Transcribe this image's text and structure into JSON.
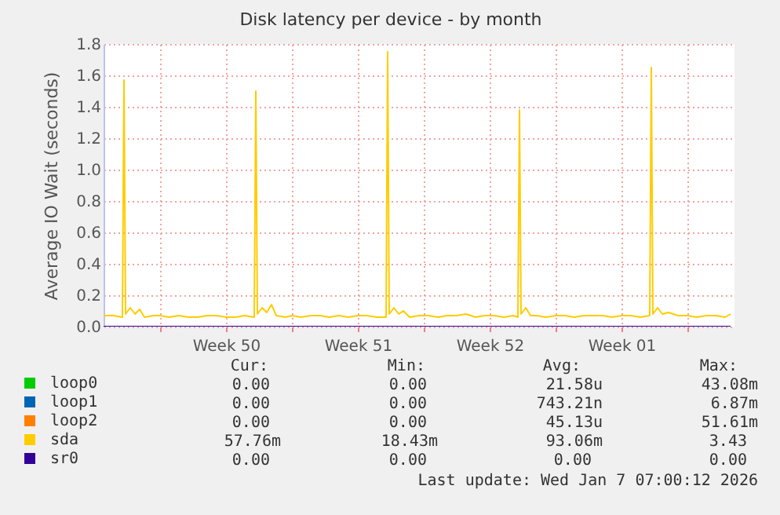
{
  "chart_data": {
    "type": "line",
    "title": "Disk latency per device - by month",
    "ylabel": "Average IO Wait (seconds)",
    "xlim": [
      "2025-12-05",
      "2026-01-07T12:00"
    ],
    "xticks": [
      {
        "value": "2025-12-08",
        "label": null
      },
      {
        "value": "2025-12-11T12:00",
        "label": "Week 50"
      },
      {
        "value": "2025-12-15",
        "label": null
      },
      {
        "value": "2025-12-18T12:00",
        "label": "Week 51"
      },
      {
        "value": "2025-12-22",
        "label": null
      },
      {
        "value": "2025-12-25T12:00",
        "label": "Week 52"
      },
      {
        "value": "2025-12-29",
        "label": null
      },
      {
        "value": "2026-01-01T12:00",
        "label": "Week 01"
      },
      {
        "value": "2026-01-05",
        "label": null
      }
    ],
    "ylim": [
      0,
      1.8
    ],
    "yticks": [
      {
        "value": 0,
        "label": "0.0"
      },
      {
        "value": 0.2,
        "label": "0.2"
      },
      {
        "value": 0.4,
        "label": "0.4"
      },
      {
        "value": 0.6,
        "label": "0.6"
      },
      {
        "value": 0.8,
        "label": "0.8"
      },
      {
        "value": 1,
        "label": "1.0"
      },
      {
        "value": 1.2,
        "label": "1.2"
      },
      {
        "value": 1.4,
        "label": "1.4"
      },
      {
        "value": 1.6,
        "label": "1.6"
      },
      {
        "value": 1.8,
        "label": "1.8"
      }
    ],
    "grid": true,
    "legend": "bottom left",
    "series": [
      {
        "name": "loop0",
        "color": "#00cc00",
        "values": [
          null
        ]
      },
      {
        "name": "loop1",
        "color": "#0066b3",
        "values": [
          null
        ]
      },
      {
        "name": "loop2",
        "color": "#ff8000",
        "values": [
          null
        ]
      },
      {
        "name": "sda",
        "color": "#ffcc00",
        "x": [
          "2025-12-05T00:00",
          "2025-12-05T12:00",
          "2025-12-06T00:00",
          "2025-12-06T02:00",
          "2025-12-06T04:00",
          "2025-12-06T10:00",
          "2025-12-06T16:00",
          "2025-12-06T22:00",
          "2025-12-07T04:00",
          "2025-12-07T16:00",
          "2025-12-08T00:00",
          "2025-12-08T12:00",
          "2025-12-09T00:00",
          "2025-12-09T12:00",
          "2025-12-10T00:00",
          "2025-12-10T12:00",
          "2025-12-11T00:00",
          "2025-12-11T12:00",
          "2025-12-12T00:00",
          "2025-12-12T12:00",
          "2025-12-13T00:00",
          "2025-12-13T02:00",
          "2025-12-13T04:00",
          "2025-12-13T10:00",
          "2025-12-13T16:00",
          "2025-12-13T22:00",
          "2025-12-14T04:00",
          "2025-12-14T16:00",
          "2025-12-15T00:00",
          "2025-12-15T12:00",
          "2025-12-16T00:00",
          "2025-12-16T12:00",
          "2025-12-17T00:00",
          "2025-12-17T12:00",
          "2025-12-18T00:00",
          "2025-12-18T12:00",
          "2025-12-19T00:00",
          "2025-12-19T12:00",
          "2025-12-20T00:00",
          "2025-12-20T02:00",
          "2025-12-20T04:00",
          "2025-12-20T10:00",
          "2025-12-20T16:00",
          "2025-12-20T22:00",
          "2025-12-21T06:00",
          "2025-12-21T18:00",
          "2025-12-22T06:00",
          "2025-12-22T18:00",
          "2025-12-23T06:00",
          "2025-12-23T18:00",
          "2025-12-24T06:00",
          "2025-12-24T18:00",
          "2025-12-25T06:00",
          "2025-12-25T18:00",
          "2025-12-26T06:00",
          "2025-12-26T18:00",
          "2025-12-27T00:00",
          "2025-12-27T02:00",
          "2025-12-27T04:00",
          "2025-12-27T10:00",
          "2025-12-27T16:00",
          "2025-12-28T00:00",
          "2025-12-28T12:00",
          "2025-12-29T00:00",
          "2025-12-29T12:00",
          "2025-12-30T00:00",
          "2025-12-30T12:00",
          "2025-12-31T00:00",
          "2025-12-31T12:00",
          "2026-01-01T00:00",
          "2026-01-01T12:00",
          "2026-01-02T00:00",
          "2026-01-02T12:00",
          "2026-01-03T00:00",
          "2026-01-03T02:00",
          "2026-01-03T04:00",
          "2026-01-03T10:00",
          "2026-01-03T16:00",
          "2026-01-04T00:00",
          "2026-01-04T12:00",
          "2026-01-05T00:00",
          "2026-01-05T12:00",
          "2026-01-06T00:00",
          "2026-01-06T12:00",
          "2026-01-07T00:00",
          "2026-01-07T07:00"
        ],
        "values": [
          0.07,
          0.07,
          0.06,
          1.57,
          0.08,
          0.12,
          0.08,
          0.11,
          0.06,
          0.07,
          0.07,
          0.06,
          0.07,
          0.06,
          0.06,
          0.07,
          0.07,
          0.06,
          0.06,
          0.07,
          0.06,
          1.5,
          0.08,
          0.12,
          0.09,
          0.14,
          0.07,
          0.06,
          0.07,
          0.06,
          0.07,
          0.07,
          0.06,
          0.07,
          0.06,
          0.07,
          0.07,
          0.06,
          0.06,
          1.75,
          0.08,
          0.12,
          0.08,
          0.1,
          0.06,
          0.07,
          0.07,
          0.06,
          0.07,
          0.07,
          0.08,
          0.06,
          0.07,
          0.07,
          0.06,
          0.07,
          0.06,
          1.38,
          0.08,
          0.12,
          0.07,
          0.07,
          0.06,
          0.07,
          0.07,
          0.06,
          0.07,
          0.07,
          0.07,
          0.06,
          0.07,
          0.07,
          0.06,
          0.07,
          1.65,
          0.08,
          0.12,
          0.08,
          0.09,
          0.07,
          0.07,
          0.06,
          0.07,
          0.07,
          0.06,
          0.08
        ]
      },
      {
        "name": "sr0",
        "color": "#330099",
        "x": [
          "2025-12-05",
          "2026-01-07T07:00"
        ],
        "values": [
          0,
          0
        ]
      }
    ],
    "annotations": [
      "Cur:",
      "Min:",
      "Avg:",
      "Max:",
      "0.00",
      "0.00",
      "21.58u",
      "43.08m",
      "0.00",
      "0.00",
      "743.21n",
      "6.87m",
      "0.00",
      "0.00",
      "45.13u",
      "51.61m",
      "57.76m",
      "18.43m",
      "93.06m",
      "3.43",
      "0.00",
      "0.00",
      "0.00",
      "0.00",
      "Last update: Wed Jan  7 07:00:12 2026"
    ]
  }
}
